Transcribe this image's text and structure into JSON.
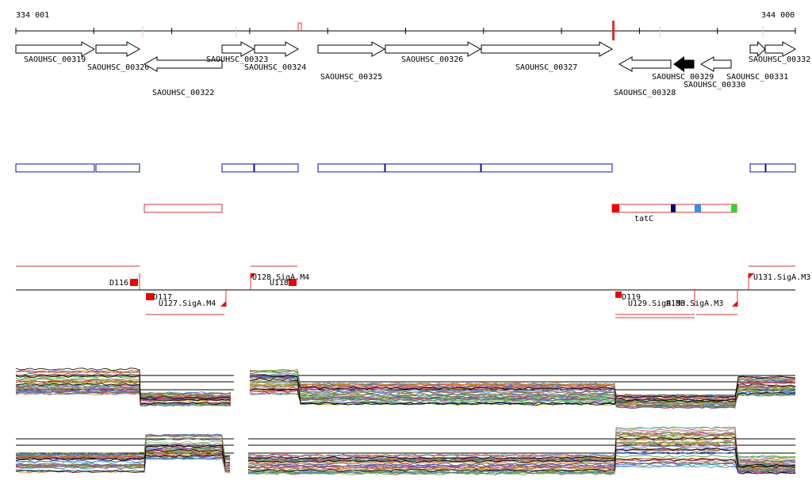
{
  "ruler": {
    "start": "334 001",
    "end": "344 000"
  },
  "genes": [
    {
      "label": "SAOUHSC_00319"
    },
    {
      "label": "SAOUHSC_00320"
    },
    {
      "label": "SAOUHSC_00322"
    },
    {
      "label": "SAOUHSC_00323"
    },
    {
      "label": "SAOUHSC_00324"
    },
    {
      "label": "SAOUHSC_00325"
    },
    {
      "label": "SAOUHSC_00326"
    },
    {
      "label": "SAOUHSC_00327"
    },
    {
      "label": "SAOUHSC_00328"
    },
    {
      "label": "SAOUHSC_00329"
    },
    {
      "label": "SAOUHSC_00330"
    },
    {
      "label": "SAOUHSC_00331"
    },
    {
      "label": "SAOUHSC_00332"
    }
  ],
  "features": [
    {
      "label": "tatC"
    }
  ],
  "signals": [
    {
      "label": "D116"
    },
    {
      "label": "D117"
    },
    {
      "label": "U127.SigA.M4"
    },
    {
      "label": "U128.SigA.M4"
    },
    {
      "label": "U118"
    },
    {
      "label": "D119"
    },
    {
      "label": "U129.SigA.M3"
    },
    {
      "label": "U130.SigA.M3"
    },
    {
      "label": "U131.SigA.M3"
    }
  ]
}
